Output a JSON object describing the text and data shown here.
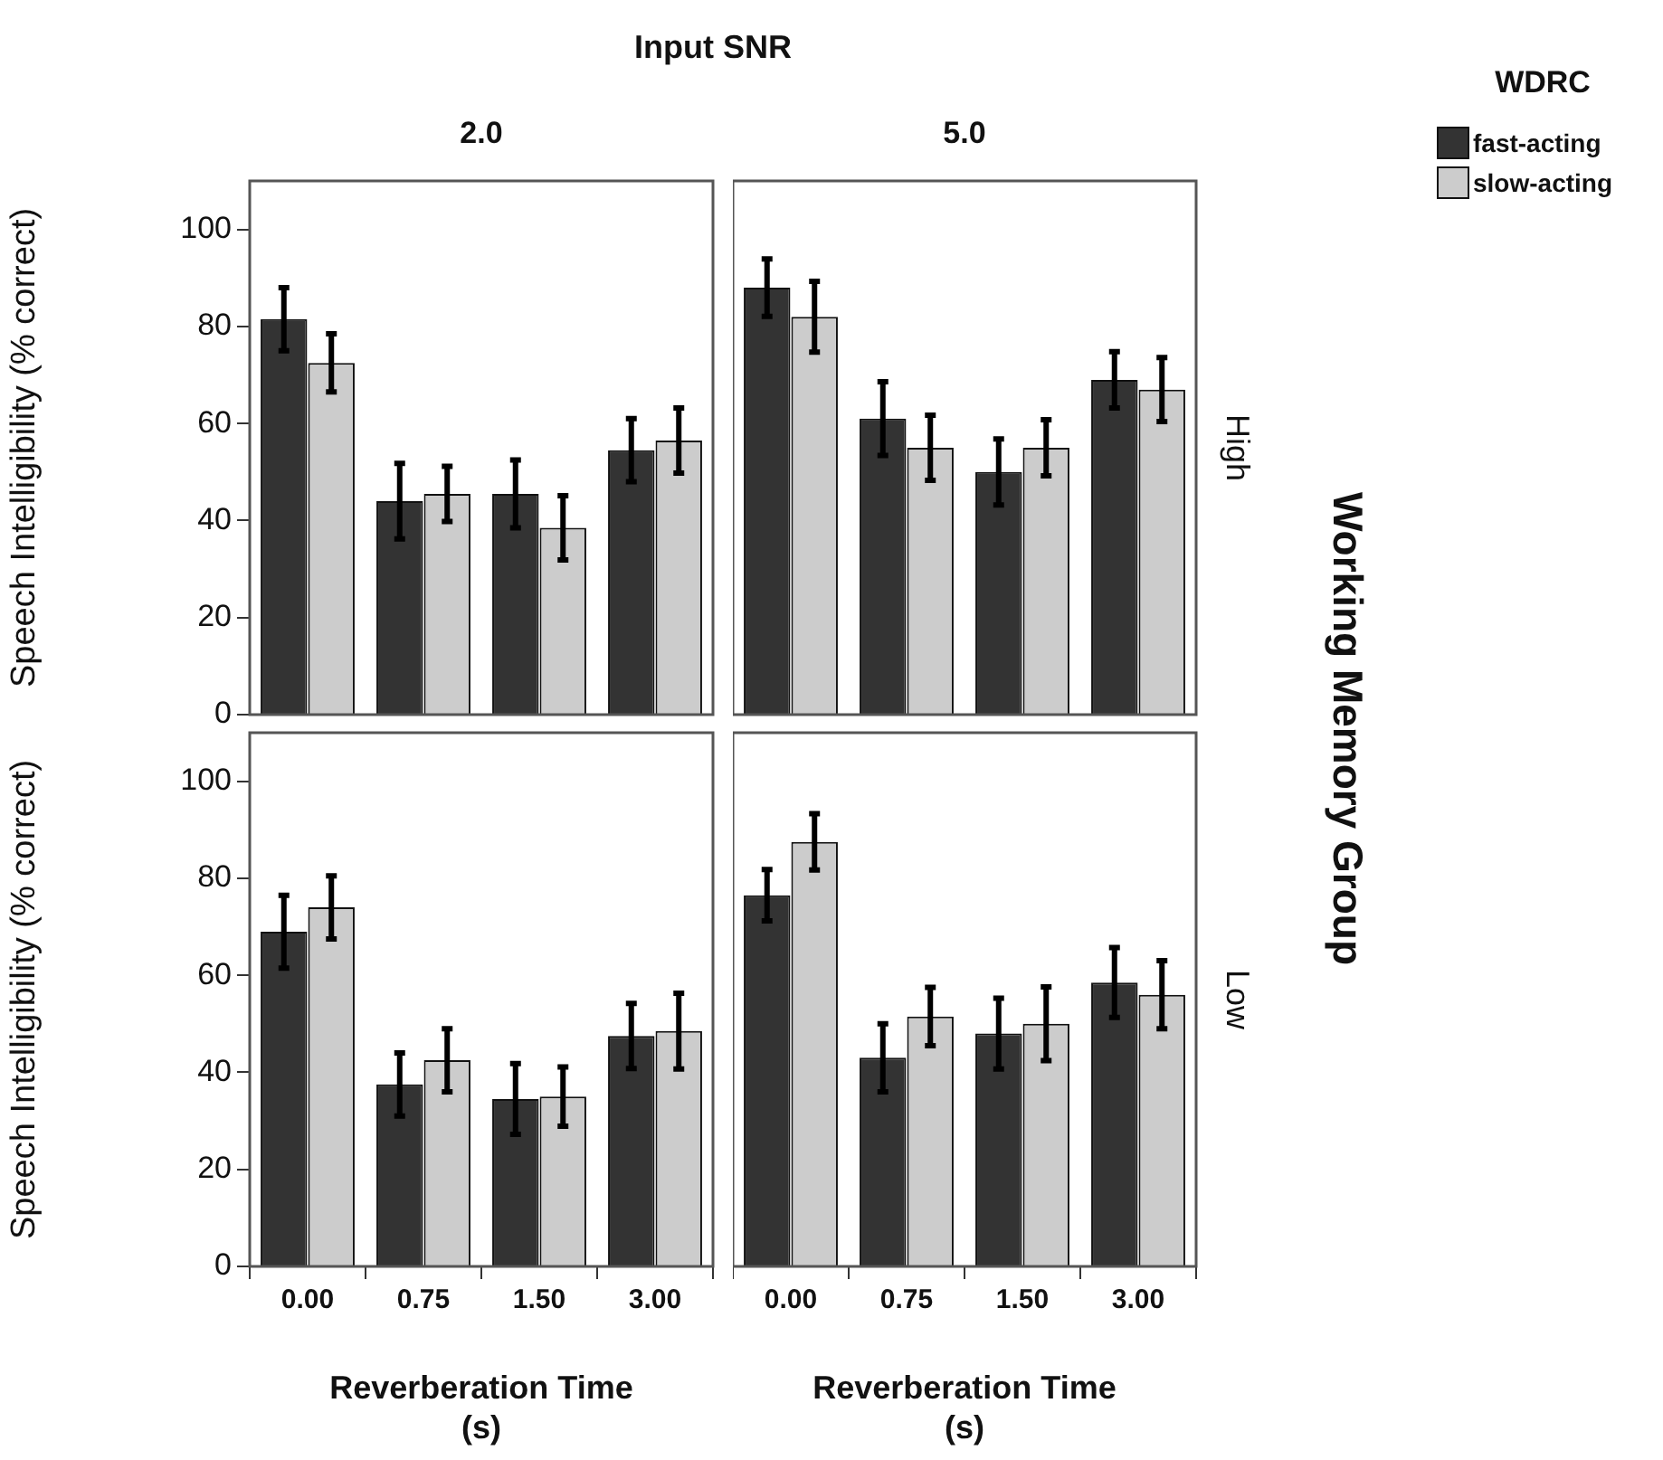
{
  "chart_data": [
    {
      "type": "bar",
      "title": "Input SNR",
      "subtitle": "2.0",
      "ylabel": "Speech Intelligibility (% correct)",
      "categories": [
        "0.00",
        "0.75",
        "1.50",
        "3.00"
      ],
      "series": [
        {
          "color": "#333333",
          "values": [
            81.5,
            44,
            45.5,
            54.5
          ],
          "errors": [
            6.5,
            7.8,
            7,
            6.5
          ]
        },
        {
          "color": "#cccccc",
          "values": [
            72.5,
            45.5,
            38.5,
            56.5
          ],
          "errors": [
            6,
            5.7,
            6.6,
            6.7
          ]
        }
      ],
      "ylim": [
        0,
        110
      ],
      "yticks": [
        0,
        20,
        40,
        60,
        80,
        100
      ],
      "tick_labels": "y",
      "grid": false
    },
    {
      "type": "bar",
      "subtitle": "5.0",
      "legend_title": "WDRC",
      "legend": "top right",
      "annotations": [
        "High",
        "Working Memory Group"
      ],
      "categories": [
        "0.00",
        "0.75",
        "1.50",
        "3.00"
      ],
      "series": [
        {
          "name": "fast-acting",
          "color": "#333333",
          "values": [
            88,
            61,
            50,
            69
          ],
          "errors": [
            5.9,
            7.6,
            6.8,
            5.8
          ]
        },
        {
          "name": "slow-acting",
          "color": "#cccccc",
          "values": [
            82,
            55,
            55,
            67
          ],
          "errors": [
            7.3,
            6.7,
            5.8,
            6.6
          ]
        }
      ],
      "ylim": [
        0,
        110
      ],
      "yticks": [
        0,
        20,
        40,
        60,
        80,
        100
      ],
      "tick_labels": false,
      "grid": false
    },
    {
      "type": "bar",
      "ylabel": "Speech Intelligibility (% correct)",
      "xlabel": "Reverberation Time (s)",
      "categories": [
        "0.00",
        "0.75",
        "1.50",
        "3.00"
      ],
      "series": [
        {
          "color": "#333333",
          "values": [
            69,
            37.5,
            34.5,
            47.5
          ],
          "errors": [
            7.5,
            6.5,
            7.3,
            6.7
          ]
        },
        {
          "color": "#cccccc",
          "values": [
            74,
            42.5,
            35,
            48.5
          ],
          "errors": [
            6.5,
            6.5,
            6.1,
            7.8
          ]
        }
      ],
      "ylim": [
        0,
        110
      ],
      "yticks": [
        0,
        20,
        40,
        60,
        80,
        100
      ],
      "grid": false
    },
    {
      "type": "bar",
      "xlabel": "Reverberation Time (s)",
      "annotations": [
        "Low"
      ],
      "categories": [
        "0.00",
        "0.75",
        "1.50",
        "3.00"
      ],
      "series": [
        {
          "color": "#333333",
          "values": [
            76.5,
            43,
            48,
            58.5
          ],
          "errors": [
            5.3,
            7,
            7.3,
            7.2
          ]
        },
        {
          "color": "#cccccc",
          "values": [
            87.5,
            51.5,
            50,
            56
          ],
          "errors": [
            5.8,
            6,
            7.6,
            7
          ]
        }
      ],
      "ylim": [
        0,
        110
      ],
      "yticks": [
        0,
        20,
        40,
        60,
        80,
        100
      ],
      "tick_labels": "x",
      "grid": false
    }
  ]
}
